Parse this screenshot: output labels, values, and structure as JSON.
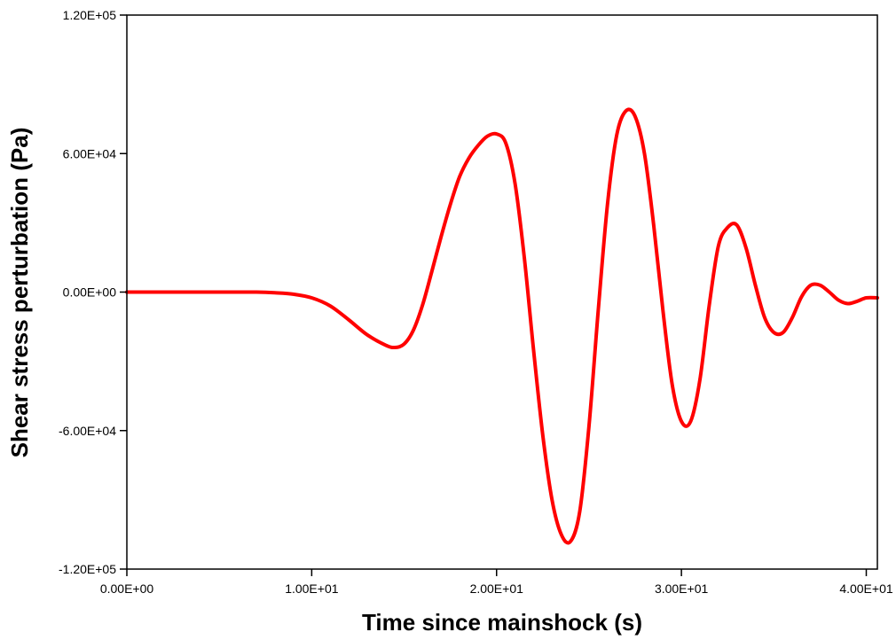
{
  "chart_data": {
    "type": "line",
    "title": "",
    "xlabel": "Time since mainshock (s)",
    "ylabel": "Shear stress perturbation (Pa)",
    "xlim": [
      0,
      40.6
    ],
    "ylim": [
      -120000,
      120000
    ],
    "grid": false,
    "legend": "none",
    "x_ticks": [
      {
        "value": 0,
        "label": "0.00E+00"
      },
      {
        "value": 10,
        "label": "1.00E+01"
      },
      {
        "value": 20,
        "label": "2.00E+01"
      },
      {
        "value": 30,
        "label": "3.00E+01"
      },
      {
        "value": 40,
        "label": "4.00E+01"
      }
    ],
    "y_ticks": [
      {
        "value": 120000,
        "label": "1.20E+05"
      },
      {
        "value": 60000,
        "label": "6.00E+04"
      },
      {
        "value": 0,
        "label": "0.00E+00"
      },
      {
        "value": -60000,
        "label": "-6.00E+04"
      },
      {
        "value": -120000,
        "label": "-1.20E+05"
      }
    ],
    "series": [
      {
        "color": "#ff0000",
        "x": [
          0,
          2,
          4,
          6,
          7,
          8,
          9,
          10,
          11,
          12,
          13,
          14,
          14.5,
          15,
          15.5,
          16,
          16.5,
          17,
          17.5,
          18,
          18.5,
          19,
          19.5,
          20,
          20.5,
          21,
          21.5,
          22,
          22.5,
          23,
          23.5,
          24,
          24.5,
          25,
          25.5,
          26,
          26.5,
          27,
          27.5,
          28,
          28.5,
          29,
          29.5,
          30,
          30.5,
          31,
          31.5,
          32,
          32.5,
          33,
          33.5,
          34,
          34.5,
          35,
          35.5,
          36,
          36.5,
          37,
          37.5,
          38,
          38.5,
          39,
          39.5,
          40,
          40.6
        ],
        "y": [
          0,
          0,
          0,
          0,
          0,
          -300,
          -900,
          -2500,
          -6000,
          -12000,
          -18500,
          -23000,
          -24000,
          -22500,
          -16500,
          -5500,
          9000,
          24000,
          38000,
          50000,
          58000,
          63500,
          67500,
          68500,
          64500,
          47000,
          15000,
          -25000,
          -62000,
          -90000,
          -105000,
          -108000,
          -95000,
          -58000,
          -8000,
          38000,
          68000,
          78500,
          76000,
          60000,
          29000,
          -8000,
          -40000,
          -56000,
          -56000,
          -38000,
          -6000,
          20000,
          28000,
          29000,
          19000,
          3000,
          -11000,
          -17500,
          -17500,
          -11000,
          -2000,
          3000,
          3000,
          0,
          -3500,
          -5000,
          -4000,
          -2500,
          -2500
        ]
      }
    ]
  }
}
